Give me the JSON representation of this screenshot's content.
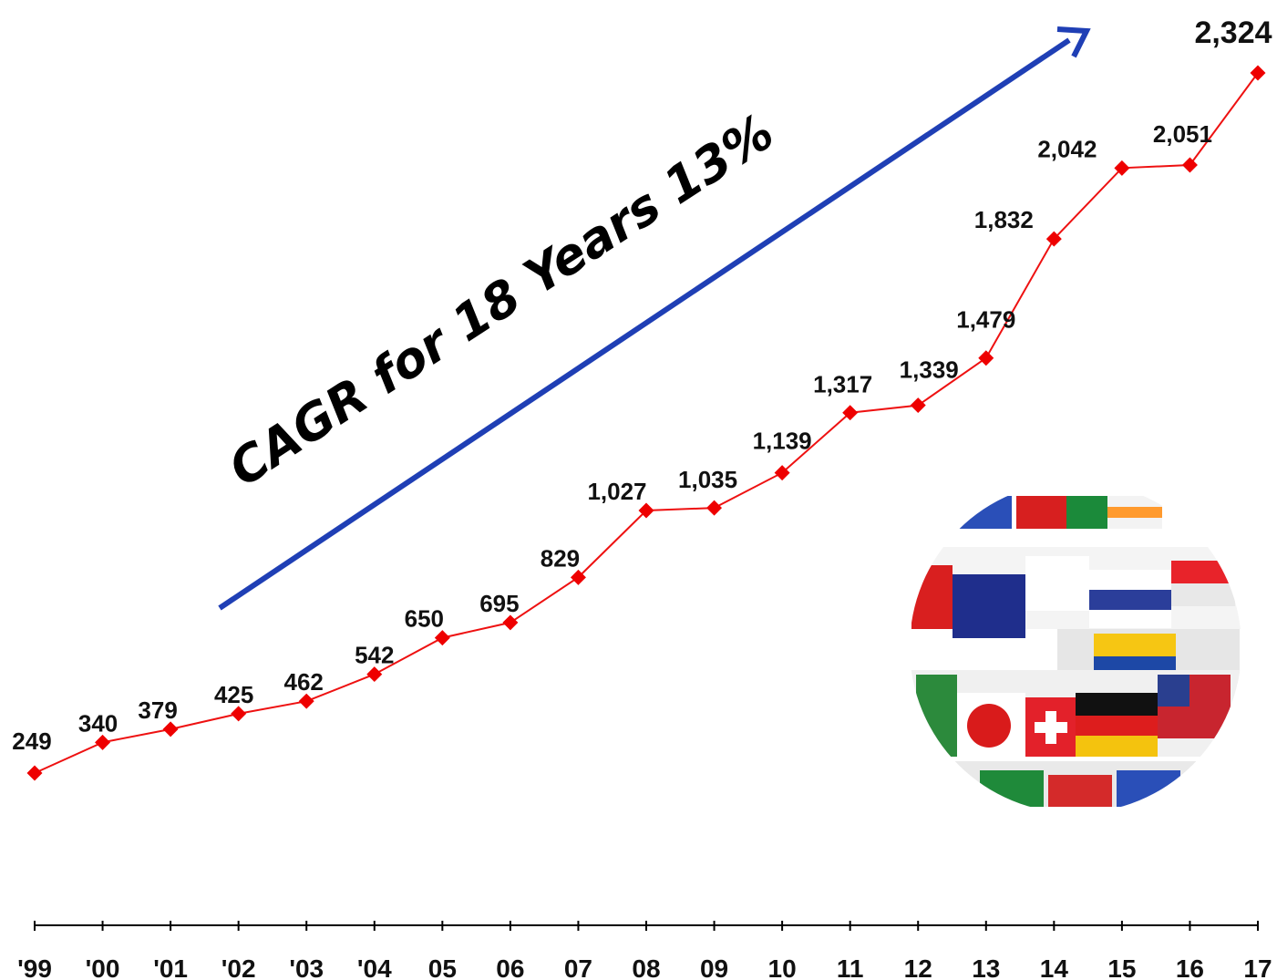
{
  "chart_data": {
    "type": "line",
    "categories": [
      "'99",
      "'00",
      "'01",
      "'02",
      "'03",
      "'04",
      "05",
      "06",
      "07",
      "08",
      "09",
      "10",
      "11",
      "12",
      "13",
      "14",
      "15",
      "16",
      "17"
    ],
    "series": [
      {
        "values": [
          249,
          340,
          379,
          425,
          462,
          542,
          650,
          695,
          829,
          1027,
          1035,
          1139,
          1317,
          1339,
          1479,
          1832,
          2042,
          2051,
          2324
        ],
        "labels": [
          "249",
          "340",
          "379",
          "425",
          "462",
          "542",
          "650",
          "695",
          "829",
          "1,027",
          "1,035",
          "1,139",
          "1,317",
          "1,339",
          "1,479",
          "1,832",
          "2,042",
          "2,051",
          "2,324"
        ]
      }
    ],
    "title": "",
    "xlabel": "",
    "ylabel": "",
    "ylim": [
      -40,
      2540
    ],
    "grid": false,
    "legend": "none",
    "annotation": "CAGR for 18 Years 13%",
    "colors": {
      "line": "#ee1111",
      "marker": "#ee0000",
      "arrow": "#1f3fb5",
      "text": "#111111"
    }
  },
  "decoration": {
    "image": "flag-globe"
  }
}
